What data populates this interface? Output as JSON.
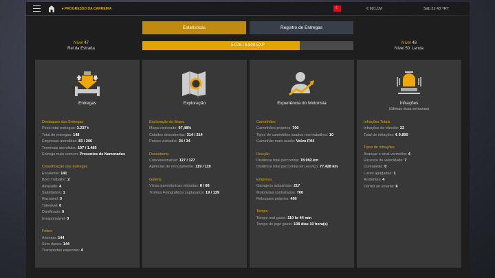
{
  "topbar": {
    "breadcrumb": "PROGRESSO DA CARREIRA",
    "money": "€ 691,1M",
    "time": "Sáb 21:43 TRT"
  },
  "tabs": [
    {
      "label": "Estatísticas",
      "active": true
    },
    {
      "label": "Registro de Entregas",
      "active": false
    }
  ],
  "level_current": {
    "label": "Nível",
    "value": "47",
    "title": "Rei da Estrada"
  },
  "level_next": {
    "label": "Nível",
    "value": "48",
    "title": "Nível 50: Lenda"
  },
  "exp": {
    "text": "5.078 / 6.800 EXP",
    "current": 5078,
    "max": 6800
  },
  "colors": {
    "accent": "#e0a500",
    "card": "#383838",
    "tab_inactive": "#37404a"
  },
  "cards": [
    {
      "icon": "delivery-icon",
      "title": "Entregas",
      "subtitle": "",
      "sections": [
        {
          "title": "Destaques das Entregas",
          "rows": [
            {
              "label": "Peso total entregue:",
              "value": "3.237 t"
            },
            {
              "label": "Total de entregas:",
              "value": "148"
            },
            {
              "label": "Empresas atendidas:",
              "value": "83 / 206"
            },
            {
              "label": "Terminais atendidos:",
              "value": "197 / 1.485"
            },
            {
              "label": "Entrega mais comum:",
              "value": "Presentes de Namorados"
            }
          ]
        },
        {
          "title": "Classificação das Entregas",
          "rows": [
            {
              "label": "Excelente:",
              "value": "141"
            },
            {
              "label": "Bom Trabalho:",
              "value": "2"
            },
            {
              "label": "Atrasado:",
              "value": "4"
            },
            {
              "label": "Satisfatório:",
              "value": "1"
            },
            {
              "label": "Razoável:",
              "value": "0"
            },
            {
              "label": "Tolerável:",
              "value": "0"
            },
            {
              "label": "Danificado:",
              "value": "0"
            },
            {
              "label": "Irresponsável:",
              "value": "0"
            }
          ]
        },
        {
          "title": "Feitos",
          "rows": [
            {
              "label": "A tempo:",
              "value": "144"
            },
            {
              "label": "Sem danos:",
              "value": "144"
            },
            {
              "label": "Transportes especiais:",
              "value": "4"
            }
          ]
        }
      ]
    },
    {
      "icon": "map-search-icon",
      "title": "Exploração",
      "subtitle": "",
      "sections": [
        {
          "title": "Exploração do Mapa",
          "rows": [
            {
              "label": "Mapa explorado:",
              "value": "97,48%"
            },
            {
              "label": "Cidades descobertas:",
              "value": "314 / 314"
            },
            {
              "label": "Países visitados:",
              "value": "34 / 34"
            }
          ]
        },
        {
          "title": "Descoberto",
          "rows": [
            {
              "label": "Concessionárias:",
              "value": "127 / 127"
            },
            {
              "label": "Agências de recrutamento:",
              "value": "119 / 119"
            }
          ]
        },
        {
          "title": "Galeria",
          "rows": [
            {
              "label": "Vistas panorâmicas visitadas:",
              "value": "8 / 88"
            },
            {
              "label": "Troféus Fotográficos capturados:",
              "value": "19 / 139"
            }
          ]
        }
      ]
    },
    {
      "icon": "driver-experience-icon",
      "title": "Experiência do Motorista",
      "subtitle": "",
      "sections": [
        {
          "title": "Caminhões",
          "rows": [
            {
              "label": "Caminhões próprios:",
              "value": "700"
            },
            {
              "label": "Tipos de caminhões usados nos trabalhos:",
              "value": "10"
            },
            {
              "label": "Caminhão mais usado:",
              "value": "Volvo FH4"
            }
          ]
        },
        {
          "title": "Direção",
          "rows": [
            {
              "label": "Distância total percorrida:",
              "value": "78.992 km"
            },
            {
              "label": "Distância total percorrida em serviço:",
              "value": "77.428 km"
            }
          ]
        },
        {
          "title": "Empresa",
          "rows": [
            {
              "label": "Garagens adquiridas:",
              "value": "217"
            },
            {
              "label": "Motoristas contratados:",
              "value": "700"
            },
            {
              "label": "Reboques próprios:",
              "value": "400"
            }
          ]
        },
        {
          "title": "Tempo",
          "rows": [
            {
              "label": "Tempo real gasto:",
              "value": "110 hr 44 min"
            },
            {
              "label": "Tempo de jogo gasto:",
              "value": "138 dias 10 hora(s)"
            }
          ]
        }
      ]
    },
    {
      "icon": "siren-icon",
      "title": "Infrações",
      "subtitle": "(últimas duas semanas)",
      "sections": [
        {
          "title": "Infrações Totais",
          "rows": [
            {
              "label": "Infrações de trânsito:",
              "value": "22"
            },
            {
              "label": "Total de infrações:",
              "value": "€ 9.800"
            }
          ]
        },
        {
          "title": "Tipos de infrações",
          "rows": [
            {
              "label": "Avançar o sinal vermelho:",
              "value": "4"
            },
            {
              "label": "Excesso de velocidade:",
              "value": "7"
            },
            {
              "label": "Contramão:",
              "value": "0"
            },
            {
              "label": "Luzes apagadas:",
              "value": "1"
            },
            {
              "label": "Acidentes:",
              "value": "4"
            },
            {
              "label": "Dormir ao volante:",
              "value": "6"
            }
          ]
        }
      ]
    }
  ]
}
